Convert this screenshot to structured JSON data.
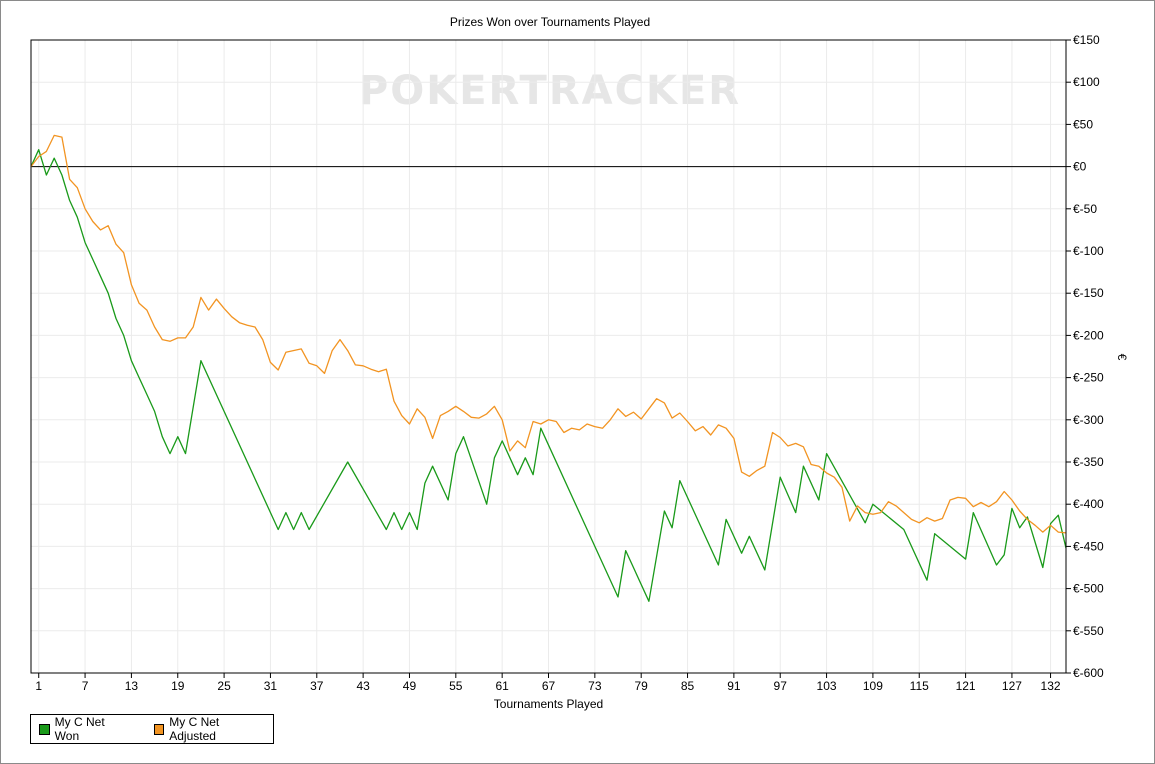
{
  "chart_data": {
    "type": "line",
    "title": "Prizes Won over Tournaments Played",
    "xlabel": "Tournaments Played",
    "ylabel": "€",
    "watermark": "POKERTRACKER",
    "xlim": [
      0,
      132
    ],
    "ylim": [
      -600,
      150
    ],
    "x_ticks": [
      1,
      7,
      13,
      19,
      25,
      31,
      37,
      43,
      49,
      55,
      61,
      67,
      73,
      79,
      85,
      91,
      97,
      103,
      109,
      115,
      121,
      127,
      132
    ],
    "y_ticks": [
      150,
      100,
      50,
      0,
      -50,
      -100,
      -150,
      -200,
      -250,
      -300,
      -350,
      -400,
      -450,
      -500,
      -550,
      -600
    ],
    "y_tick_labels": [
      "€150",
      "€100",
      "€50",
      "€0",
      "€-50",
      "€-100",
      "€-150",
      "€-200",
      "€-250",
      "€-300",
      "€-350",
      "€-400",
      "€-450",
      "€-500",
      "€-550",
      "€-600"
    ],
    "grid": true,
    "y_axis_side": "right",
    "legend_position": "bottom-left",
    "series": [
      {
        "name": "My C Net Won",
        "color": "#1a9a1a",
        "points": [
          [
            0,
            0
          ],
          [
            1,
            20
          ],
          [
            2,
            -10
          ],
          [
            3,
            10
          ],
          [
            4,
            -10
          ],
          [
            5,
            -40
          ],
          [
            6,
            -60
          ],
          [
            7,
            -90
          ],
          [
            8,
            -110
          ],
          [
            9,
            -130
          ],
          [
            10,
            -150
          ],
          [
            11,
            -180
          ],
          [
            12,
            -200
          ],
          [
            13,
            -230
          ],
          [
            14,
            -250
          ],
          [
            15,
            -270
          ],
          [
            16,
            -290
          ],
          [
            17,
            -320
          ],
          [
            18,
            -340
          ],
          [
            19,
            -320
          ],
          [
            20,
            -340
          ],
          [
            22,
            -230
          ],
          [
            32,
            -430
          ],
          [
            33,
            -410
          ],
          [
            34,
            -430
          ],
          [
            35,
            -410
          ],
          [
            36,
            -430
          ],
          [
            41,
            -350
          ],
          [
            46,
            -430
          ],
          [
            47,
            -410
          ],
          [
            48,
            -430
          ],
          [
            49,
            -410
          ],
          [
            50,
            -430
          ],
          [
            51,
            -375
          ],
          [
            52,
            -355
          ],
          [
            54,
            -395
          ],
          [
            55,
            -340
          ],
          [
            56,
            -320
          ],
          [
            59,
            -400
          ],
          [
            60,
            -345
          ],
          [
            61,
            -325
          ],
          [
            63,
            -365
          ],
          [
            64,
            -345
          ],
          [
            65,
            -365
          ],
          [
            66,
            -310
          ],
          [
            76,
            -510
          ],
          [
            77,
            -455
          ],
          [
            80,
            -515
          ],
          [
            82,
            -408
          ],
          [
            83,
            -428
          ],
          [
            84,
            -372
          ],
          [
            89,
            -472
          ],
          [
            90,
            -418
          ],
          [
            92,
            -458
          ],
          [
            93,
            -438
          ],
          [
            95,
            -478
          ],
          [
            97,
            -368
          ],
          [
            99,
            -410
          ],
          [
            100,
            -355
          ],
          [
            102,
            -395
          ],
          [
            103,
            -340
          ],
          [
            108,
            -422
          ],
          [
            109,
            -400
          ],
          [
            113,
            -430
          ],
          [
            116,
            -490
          ],
          [
            117,
            -435
          ],
          [
            121,
            -465
          ],
          [
            122,
            -410
          ],
          [
            125,
            -472
          ],
          [
            126,
            -460
          ],
          [
            127,
            -405
          ],
          [
            128,
            -428
          ],
          [
            129,
            -415
          ],
          [
            131,
            -475
          ],
          [
            132,
            -423
          ],
          [
            133,
            -413
          ],
          [
            134,
            -452
          ]
        ]
      },
      {
        "name": "My C Net Adjusted",
        "color": "#f29422",
        "points": [
          [
            0,
            0
          ],
          [
            1,
            12
          ],
          [
            2,
            18
          ],
          [
            3,
            37
          ],
          [
            4,
            35
          ],
          [
            5,
            -15
          ],
          [
            6,
            -25
          ],
          [
            7,
            -50
          ],
          [
            8,
            -65
          ],
          [
            9,
            -75
          ],
          [
            10,
            -70
          ],
          [
            11,
            -92
          ],
          [
            12,
            -102
          ],
          [
            13,
            -140
          ],
          [
            14,
            -162
          ],
          [
            15,
            -170
          ],
          [
            16,
            -190
          ],
          [
            17,
            -205
          ],
          [
            18,
            -207
          ],
          [
            19,
            -203
          ],
          [
            20,
            -203
          ],
          [
            21,
            -190
          ],
          [
            22,
            -155
          ],
          [
            23,
            -170
          ],
          [
            24,
            -157
          ],
          [
            25,
            -168
          ],
          [
            26,
            -178
          ],
          [
            27,
            -185
          ],
          [
            28,
            -188
          ],
          [
            29,
            -190
          ],
          [
            30,
            -205
          ],
          [
            31,
            -232
          ],
          [
            32,
            -241
          ],
          [
            33,
            -220
          ],
          [
            35,
            -216
          ],
          [
            36,
            -233
          ],
          [
            37,
            -236
          ],
          [
            38,
            -245
          ],
          [
            39,
            -218
          ],
          [
            40,
            -205
          ],
          [
            41,
            -218
          ],
          [
            42,
            -235
          ],
          [
            43,
            -236
          ],
          [
            44,
            -240
          ],
          [
            45,
            -243
          ],
          [
            46,
            -240
          ],
          [
            47,
            -278
          ],
          [
            48,
            -295
          ],
          [
            49,
            -305
          ],
          [
            50,
            -287
          ],
          [
            51,
            -297
          ],
          [
            52,
            -322
          ],
          [
            53,
            -295
          ],
          [
            54,
            -290
          ],
          [
            55,
            -284
          ],
          [
            56,
            -290
          ],
          [
            57,
            -297
          ],
          [
            58,
            -298
          ],
          [
            59,
            -293
          ],
          [
            60,
            -284
          ],
          [
            61,
            -300
          ],
          [
            62,
            -337
          ],
          [
            63,
            -325
          ],
          [
            64,
            -333
          ],
          [
            65,
            -302
          ],
          [
            66,
            -305
          ],
          [
            67,
            -300
          ],
          [
            68,
            -302
          ],
          [
            69,
            -315
          ],
          [
            70,
            -310
          ],
          [
            71,
            -312
          ],
          [
            72,
            -305
          ],
          [
            73,
            -308
          ],
          [
            74,
            -310
          ],
          [
            75,
            -300
          ],
          [
            76,
            -287
          ],
          [
            77,
            -296
          ],
          [
            78,
            -291
          ],
          [
            79,
            -299
          ],
          [
            80,
            -287
          ],
          [
            81,
            -275
          ],
          [
            82,
            -280
          ],
          [
            83,
            -298
          ],
          [
            84,
            -292
          ],
          [
            85,
            -302
          ],
          [
            86,
            -313
          ],
          [
            87,
            -308
          ],
          [
            88,
            -318
          ],
          [
            89,
            -306
          ],
          [
            90,
            -310
          ],
          [
            91,
            -322
          ],
          [
            92,
            -362
          ],
          [
            93,
            -367
          ],
          [
            94,
            -360
          ],
          [
            95,
            -355
          ],
          [
            96,
            -315
          ],
          [
            97,
            -321
          ],
          [
            98,
            -331
          ],
          [
            99,
            -328
          ],
          [
            100,
            -332
          ],
          [
            101,
            -353
          ],
          [
            102,
            -355
          ],
          [
            103,
            -363
          ],
          [
            104,
            -368
          ],
          [
            105,
            -380
          ],
          [
            106,
            -420
          ],
          [
            107,
            -402
          ],
          [
            108,
            -410
          ],
          [
            109,
            -412
          ],
          [
            110,
            -410
          ],
          [
            111,
            -397
          ],
          [
            112,
            -402
          ],
          [
            113,
            -410
          ],
          [
            114,
            -418
          ],
          [
            115,
            -422
          ],
          [
            116,
            -416
          ],
          [
            117,
            -420
          ],
          [
            118,
            -417
          ],
          [
            119,
            -395
          ],
          [
            120,
            -392
          ],
          [
            121,
            -393
          ],
          [
            122,
            -403
          ],
          [
            123,
            -398
          ],
          [
            124,
            -403
          ],
          [
            125,
            -397
          ],
          [
            126,
            -385
          ],
          [
            127,
            -395
          ],
          [
            128,
            -408
          ],
          [
            129,
            -418
          ],
          [
            130,
            -425
          ],
          [
            131,
            -433
          ],
          [
            132,
            -425
          ],
          [
            133,
            -433
          ],
          [
            134,
            -434
          ]
        ]
      }
    ]
  }
}
